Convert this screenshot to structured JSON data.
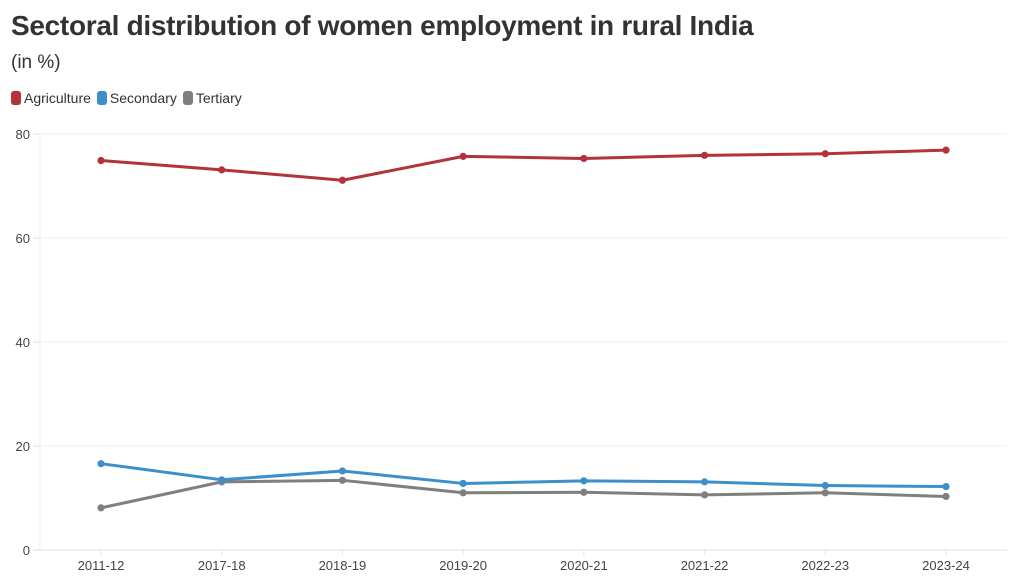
{
  "header": {
    "title": "Sectoral distribution of women employment in rural India",
    "subtitle": "(in %)"
  },
  "chart_data": {
    "type": "line",
    "title": "Sectoral distribution of women employment in rural India",
    "subtitle": "(in %)",
    "xlabel": "",
    "ylabel": "",
    "categories": [
      "2011-12",
      "2017-18",
      "2018-19",
      "2019-20",
      "2020-21",
      "2021-22",
      "2022-23",
      "2023-24"
    ],
    "ylim": [
      0,
      80
    ],
    "yticks": [
      0,
      20,
      40,
      60,
      80
    ],
    "grid": true,
    "legend_position": "top-left",
    "series": [
      {
        "name": "Agriculture",
        "color": "#b2333a",
        "values": [
          74.9,
          73.1,
          71.1,
          75.7,
          75.3,
          75.9,
          76.2,
          76.9
        ]
      },
      {
        "name": "Secondary",
        "color": "#3d8fcc",
        "values": [
          16.6,
          13.5,
          15.2,
          12.8,
          13.3,
          13.1,
          12.4,
          12.2
        ]
      },
      {
        "name": "Tertiary",
        "color": "#7f7f7f",
        "values": [
          8.1,
          13.1,
          13.4,
          11.0,
          11.1,
          10.6,
          11.0,
          10.3
        ]
      }
    ]
  }
}
